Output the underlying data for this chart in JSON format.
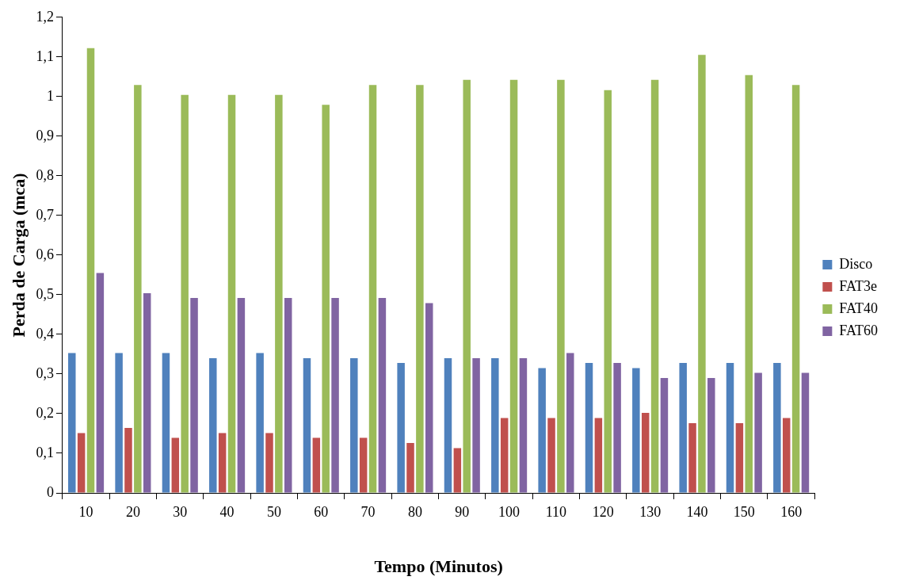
{
  "chart_data": {
    "type": "bar",
    "xlabel": "Tempo (Minutos)",
    "ylabel": "Perda de Carga (mca)",
    "categories": [
      "10",
      "20",
      "30",
      "40",
      "50",
      "60",
      "70",
      "80",
      "90",
      "100",
      "110",
      "120",
      "130",
      "140",
      "150",
      "160"
    ],
    "series": [
      {
        "name": "Disco",
        "color": "#4f81bd",
        "values": [
          0.353,
          0.353,
          0.353,
          0.34,
          0.353,
          0.34,
          0.34,
          0.328,
          0.34,
          0.34,
          0.315,
          0.328,
          0.315,
          0.328,
          0.328,
          0.328
        ]
      },
      {
        "name": "FAT3e",
        "color": "#c0504d",
        "values": [
          0.151,
          0.164,
          0.139,
          0.151,
          0.151,
          0.139,
          0.139,
          0.126,
          0.113,
          0.189,
          0.189,
          0.189,
          0.202,
          0.176,
          0.176,
          0.189
        ]
      },
      {
        "name": "FAT40",
        "color": "#9bbb59",
        "values": [
          1.122,
          1.029,
          1.004,
          1.004,
          1.004,
          0.979,
          1.029,
          1.029,
          1.042,
          1.042,
          1.042,
          1.016,
          1.042,
          1.105,
          1.054,
          1.029
        ]
      },
      {
        "name": "FAT60",
        "color": "#8064a2",
        "values": [
          0.555,
          0.504,
          0.492,
          0.492,
          0.492,
          0.492,
          0.492,
          0.479,
          0.34,
          0.34,
          0.353,
          0.328,
          0.29,
          0.29,
          0.303,
          0.303
        ]
      }
    ],
    "ylim": [
      0,
      1.2
    ],
    "yticks": [
      0,
      {
        "value": 0.1,
        "label": "0,1"
      },
      {
        "value": 0.2,
        "label": "0,2"
      },
      {
        "value": 0.3,
        "label": "0,3"
      },
      {
        "value": 0.4,
        "label": "0,4"
      },
      {
        "value": 0.5,
        "label": "0,5"
      },
      {
        "value": 0.6,
        "label": "0,6"
      },
      {
        "value": 0.7,
        "label": "0,7"
      },
      {
        "value": 0.8,
        "label": "0,8"
      },
      {
        "value": 0.9,
        "label": "0,9"
      },
      1,
      {
        "value": 1.1,
        "label": "1,1"
      },
      {
        "value": 1.2,
        "label": "1,2"
      }
    ],
    "grid": false,
    "legend": "right"
  }
}
